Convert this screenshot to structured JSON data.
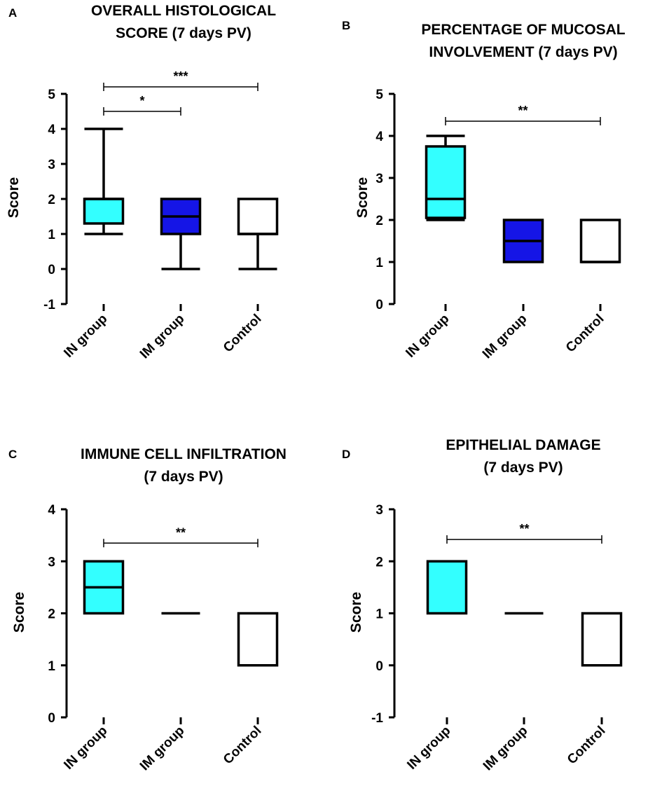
{
  "colors": {
    "IN group": "#33ffff",
    "IM group": "#1515e6",
    "Control": "#ffffff",
    "stroke": "#000000"
  },
  "chart_data": [
    {
      "panel": "A",
      "type": "box",
      "title": [
        "OVERALL HISTOLOGICAL",
        "SCORE (7 days PV)"
      ],
      "ylabel": "Score",
      "ylim": [
        -1,
        5
      ],
      "yticks": [
        "-1",
        "0",
        "1",
        "2",
        "3",
        "4",
        "5"
      ],
      "categories": [
        "IN group",
        "IM group",
        "Control"
      ],
      "boxes": [
        {
          "group": "IN group",
          "min": 1,
          "q1": 1.3,
          "median": 2,
          "q3": 2,
          "max": 4
        },
        {
          "group": "IM group",
          "min": 0,
          "q1": 1,
          "median": 1.5,
          "q3": 2,
          "max": 2
        },
        {
          "group": "Control",
          "min": 0,
          "q1": 1,
          "median": 1,
          "q3": 2,
          "max": 2
        }
      ],
      "significance": [
        {
          "from": "IN group",
          "to": "IM group",
          "label": "*",
          "y": 4.5
        },
        {
          "from": "IN group",
          "to": "Control",
          "label": "***",
          "y": 5.2
        }
      ]
    },
    {
      "panel": "B",
      "type": "box",
      "title": [
        "PERCENTAGE OF MUCOSAL",
        "INVOLVEMENT (7 days PV)"
      ],
      "ylabel": "Score",
      "ylim": [
        0,
        5
      ],
      "yticks": [
        "0",
        "1",
        "2",
        "3",
        "4",
        "5"
      ],
      "categories": [
        "IN group",
        "IM group",
        "Control"
      ],
      "boxes": [
        {
          "group": "IN group",
          "min": 2,
          "q1": 2.05,
          "median": 2.5,
          "q3": 3.75,
          "max": 4
        },
        {
          "group": "IM group",
          "min": 1,
          "q1": 1,
          "median": 1.5,
          "q3": 2,
          "max": 2
        },
        {
          "group": "Control",
          "min": 1,
          "q1": 1,
          "median": 1,
          "q3": 2,
          "max": 2
        }
      ],
      "significance": [
        {
          "from": "IN group",
          "to": "Control",
          "label": "**",
          "y": 4.35
        }
      ]
    },
    {
      "panel": "C",
      "type": "box",
      "title": [
        "IMMUNE CELL INFILTRATION",
        "(7 days PV)"
      ],
      "ylabel": "Score",
      "ylim": [
        0,
        4
      ],
      "yticks": [
        "0",
        "1",
        "2",
        "3",
        "4"
      ],
      "categories": [
        "IN group",
        "IM group",
        "Control"
      ],
      "boxes": [
        {
          "group": "IN group",
          "min": 2,
          "q1": 2,
          "median": 2.5,
          "q3": 3,
          "max": 3
        },
        {
          "group": "IM group",
          "min": 2,
          "q1": 2,
          "median": 2,
          "q3": 2,
          "max": 2
        },
        {
          "group": "Control",
          "min": 1,
          "q1": 1,
          "median": 1,
          "q3": 2,
          "max": 2
        }
      ],
      "significance": [
        {
          "from": "IN group",
          "to": "Control",
          "label": "**",
          "y": 3.35
        }
      ]
    },
    {
      "panel": "D",
      "type": "box",
      "title": [
        "EPITHELIAL DAMAGE",
        "(7 days PV)"
      ],
      "ylabel": "Score",
      "ylim": [
        -1,
        3
      ],
      "yticks": [
        "-1",
        "0",
        "1",
        "2",
        "3"
      ],
      "categories": [
        "IN group",
        "IM group",
        "Control"
      ],
      "boxes": [
        {
          "group": "IN group",
          "min": 1,
          "q1": 1,
          "median": 2,
          "q3": 2,
          "max": 2
        },
        {
          "group": "IM group",
          "min": 1,
          "q1": 1,
          "median": 1,
          "q3": 1,
          "max": 1
        },
        {
          "group": "Control",
          "min": 0,
          "q1": 0,
          "median": 0,
          "q3": 1,
          "max": 1
        }
      ],
      "significance": [
        {
          "from": "IN group",
          "to": "Control",
          "label": "**",
          "y": 2.42
        }
      ]
    }
  ]
}
